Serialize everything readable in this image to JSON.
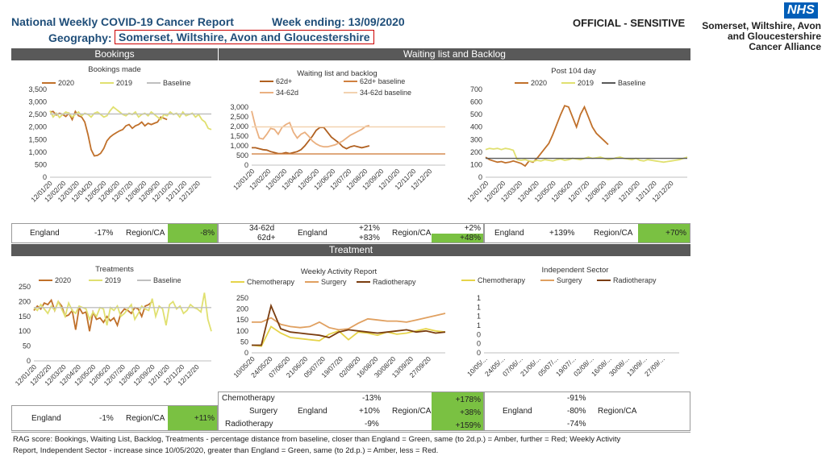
{
  "header": {
    "report_title": "National Weekly COVID-19 Cancer Report",
    "week_ending": "Week ending: 13/09/2020",
    "geography_label": "Geography:",
    "geography_value": "Somerset, Wiltshire, Avon and Gloucestershire",
    "classification": "OFFICIAL - SENSITIVE",
    "nhs_logo": "NHS",
    "org_line1": "Somerset, Wiltshire, Avon",
    "org_line2": "and Gloucestershire",
    "org_line3": "Cancer Alliance"
  },
  "sections": {
    "bookings": "Bookings",
    "waiting": "Waiting list and Backlog",
    "treatment": "Treatment"
  },
  "colors": {
    "y2020": "#c0702a",
    "y2019": "#e0e070",
    "baseline": "#bfbfbf",
    "surgery": "#e0a060",
    "radio": "#7a3d10",
    "chemo": "#e6d44a",
    "wl62": "#b06020",
    "wl62base": "#d08040",
    "wl3462": "#eab080",
    "wl3462base": "#f2d2b0",
    "green": "#7ac142"
  },
  "chart_data": [
    {
      "id": "bookings",
      "type": "line",
      "title": "Bookings made",
      "legend": [
        "2020",
        "2019",
        "Baseline"
      ],
      "ylim": [
        0,
        3500
      ],
      "yticks": [
        "3,500",
        "3,000",
        "2,500",
        "2,000",
        "1,500",
        "1,000",
        "500",
        "0"
      ],
      "xticks": [
        "12/01/20",
        "12/02/20",
        "12/03/20",
        "12/04/20",
        "12/05/20",
        "12/06/20",
        "12/07/20",
        "12/08/20",
        "12/09/20",
        "12/10/20",
        "12/11/20",
        "12/12/20"
      ],
      "weeks": 52,
      "series": [
        {
          "name": "2020",
          "color": "#c0702a",
          "values": [
            2600,
            2620,
            2480,
            2550,
            2500,
            2420,
            2550,
            2300,
            2620,
            2450,
            2400,
            2200,
            1700,
            1100,
            850,
            870,
            950,
            1150,
            1450,
            1600,
            1700,
            1780,
            1850,
            1900,
            2050,
            2100,
            1950,
            2050,
            2100,
            2200,
            2050,
            2150,
            2100,
            2150,
            2200,
            2400,
            2350,
            2300
          ]
        },
        {
          "name": "2019",
          "color": "#e0e070",
          "values": [
            2650,
            2400,
            2550,
            2380,
            2500,
            2600,
            2550,
            2400,
            2500,
            2600,
            2450,
            2550,
            2500,
            2400,
            2550,
            2600,
            2500,
            2400,
            2450,
            2650,
            2800,
            2700,
            2600,
            2500,
            2450,
            2550,
            2500,
            2600,
            2400,
            2500,
            2550,
            2450,
            2600,
            2500,
            2400,
            2300,
            2500,
            2450,
            2600,
            2500,
            2550,
            2400,
            2600,
            2450,
            2500,
            2550,
            2400,
            2500,
            2300,
            2200,
            1950,
            1900
          ]
        },
        {
          "name": "Baseline",
          "color": "#bfbfbf",
          "values": [
            2520,
            2520
          ]
        }
      ]
    },
    {
      "id": "waiting",
      "type": "line",
      "title": "Waiting list and backlog",
      "legend": [
        "62d+",
        "62d+ baseline",
        "34-62d",
        "34-62d baseline"
      ],
      "ylim": [
        0,
        3000
      ],
      "yticks": [
        "3,000",
        "2,500",
        "2,000",
        "1,500",
        "1,000",
        "500",
        "0"
      ],
      "xticks": [
        "12/01/20",
        "12/02/20",
        "12/03/20",
        "12/04/20",
        "12/05/20",
        "12/06/20",
        "12/07/20",
        "12/08/20",
        "12/09/20",
        "12/10/20",
        "12/11/20",
        "12/12/20"
      ],
      "weeks": 52,
      "series": [
        {
          "name": "62d+",
          "color": "#b06020",
          "values": [
            900,
            900,
            850,
            800,
            780,
            700,
            650,
            600,
            600,
            650,
            600,
            650,
            700,
            800,
            1000,
            1250,
            1500,
            1800,
            1950,
            1950,
            1700,
            1450,
            1300,
            1150,
            950,
            850,
            950,
            1000,
            950,
            900,
            950,
            1000
          ]
        },
        {
          "name": "62d+ baseline",
          "color": "#d08040",
          "values": [
            580,
            580
          ]
        },
        {
          "name": "34-62d",
          "color": "#eab080",
          "values": [
            2800,
            2000,
            1400,
            1350,
            1600,
            1900,
            1850,
            1600,
            1950,
            2100,
            2200,
            1700,
            1400,
            1600,
            1700,
            1500,
            1250,
            1100,
            1000,
            950,
            950,
            1000,
            1050,
            1150,
            1250,
            1400,
            1550,
            1650,
            1750,
            1850,
            2000,
            2050
          ]
        },
        {
          "name": "34-62d baseline",
          "color": "#f2d2b0",
          "values": [
            1980,
            1980
          ]
        }
      ]
    },
    {
      "id": "post104",
      "type": "line",
      "title": "Post 104 day",
      "legend": [
        "2020",
        "2019",
        "Baseline"
      ],
      "ylim": [
        0,
        700
      ],
      "yticks": [
        "700",
        "600",
        "500",
        "400",
        "300",
        "200",
        "100",
        "0"
      ],
      "xticks": [
        "12/01/20",
        "12/02/20",
        "12/03/20",
        "12/04/20",
        "12/05/20",
        "12/06/20",
        "12/07/20",
        "12/08/20",
        "12/09/20",
        "12/10/20",
        "12/11/20",
        "12/12/20"
      ],
      "weeks": 52,
      "series": [
        {
          "name": "2020",
          "color": "#c0702a",
          "values": [
            160,
            140,
            130,
            120,
            125,
            115,
            120,
            130,
            120,
            110,
            90,
            130,
            120,
            150,
            190,
            230,
            270,
            340,
            420,
            500,
            570,
            560,
            480,
            400,
            500,
            560,
            480,
            400,
            350,
            320,
            290,
            260
          ]
        },
        {
          "name": "2019",
          "color": "#e0e070",
          "values": [
            220,
            230,
            225,
            230,
            220,
            230,
            225,
            215,
            140,
            135,
            140,
            130,
            125,
            135,
            130,
            140,
            135,
            130,
            140,
            145,
            135,
            140,
            150,
            145,
            140,
            150,
            160,
            150,
            155,
            160,
            150,
            140,
            145,
            155,
            160,
            150,
            145,
            140,
            150,
            135,
            130,
            140,
            135,
            130,
            125,
            120,
            125,
            130,
            135,
            140,
            150,
            160
          ]
        },
        {
          "name": "Baseline",
          "color": "#595959",
          "values": [
            150,
            150
          ]
        }
      ]
    },
    {
      "id": "treatments",
      "type": "line",
      "title": "Treatments",
      "legend": [
        "2020",
        "2019",
        "Baseline"
      ],
      "ylim": [
        0,
        250
      ],
      "yticks": [
        "250",
        "200",
        "150",
        "100",
        "50",
        "0"
      ],
      "xticks": [
        "12/01/20",
        "12/02/20",
        "12/03/20",
        "12/04/20",
        "12/05/20",
        "12/06/20",
        "12/07/20",
        "12/08/20",
        "12/09/20",
        "12/10/20",
        "12/11/20",
        "12/12/20"
      ],
      "weeks": 52,
      "series": [
        {
          "name": "2020",
          "color": "#c0702a",
          "values": [
            170,
            185,
            175,
            195,
            190,
            205,
            170,
            200,
            185,
            150,
            155,
            170,
            105,
            180,
            160,
            165,
            100,
            165,
            140,
            145,
            130,
            150,
            135,
            145,
            120,
            160,
            175,
            170,
            160,
            180,
            175,
            150,
            185,
            190,
            200
          ]
        },
        {
          "name": "2019",
          "color": "#e0e070",
          "values": [
            180,
            170,
            190,
            175,
            160,
            185,
            170,
            200,
            175,
            150,
            195,
            170,
            160,
            185,
            180,
            175,
            140,
            165,
            150,
            180,
            175,
            120,
            180,
            170,
            185,
            150,
            160,
            175,
            190,
            140,
            160,
            185,
            175,
            170,
            210,
            150,
            185,
            175,
            120,
            190,
            200,
            175,
            185,
            160,
            170,
            190,
            180,
            175,
            165,
            230,
            140,
            100
          ]
        },
        {
          "name": "Baseline",
          "color": "#bfbfbf",
          "values": [
            180,
            180
          ]
        }
      ]
    },
    {
      "id": "weekly_activity",
      "type": "line",
      "title": "Weekly Activity Report",
      "legend": [
        "Chemotherapy",
        "Surgery",
        "Radiotherapy"
      ],
      "ylim": [
        0,
        250
      ],
      "yticks": [
        "250",
        "200",
        "150",
        "100",
        "50",
        "0"
      ],
      "xticks": [
        "10/05/20",
        "24/05/20",
        "07/06/20",
        "21/06/20",
        "05/07/20",
        "19/07/20",
        "02/08/20",
        "16/08/20",
        "30/08/20",
        "13/09/20",
        "27/09/20"
      ],
      "weeks": 21,
      "series": [
        {
          "name": "Chemotherapy",
          "color": "#e6d44a",
          "values": [
            35,
            30,
            120,
            90,
            70,
            65,
            60,
            55,
            85,
            100,
            60,
            95,
            90,
            80,
            95,
            85,
            90,
            100,
            110,
            100,
            95
          ]
        },
        {
          "name": "Surgery",
          "color": "#e0a060",
          "values": [
            140,
            140,
            160,
            130,
            120,
            115,
            120,
            140,
            115,
            105,
            110,
            135,
            155,
            150,
            145,
            145,
            140,
            150,
            160,
            170,
            180
          ]
        },
        {
          "name": "Radiotherapy",
          "color": "#7a3d10",
          "values": [
            35,
            35,
            215,
            110,
            95,
            90,
            85,
            80,
            70,
            95,
            105,
            100,
            95,
            90,
            95,
            100,
            105,
            95,
            100,
            90,
            95
          ]
        }
      ]
    },
    {
      "id": "independent",
      "type": "line",
      "title": "Independent Sector",
      "legend": [
        "Chemotherapy",
        "Surgery",
        "Radiotherapy"
      ],
      "ylim": [
        0,
        1
      ],
      "yticks": [
        "1",
        "1",
        "1",
        "1",
        "0",
        "0",
        "0"
      ],
      "xticks": [
        "10/05/...",
        "24/05/...",
        "07/06/...",
        "21/06/...",
        "05/07/...",
        "19/07/...",
        "02/08/...",
        "16/08/...",
        "30/08/...",
        "13/09/...",
        "27/09/..."
      ],
      "weeks": 21,
      "series": []
    }
  ],
  "tables": {
    "bookings": {
      "england_label": "England",
      "england_value": "-17%",
      "region_label": "Region/CA",
      "region_value": "-8%"
    },
    "waiting": {
      "row1": "34-62d",
      "row2": "62d+",
      "england_label": "England",
      "eng1": "+21%",
      "eng2": "+83%",
      "region_label": "Region/CA",
      "reg1": "+2%",
      "reg2": "+48%"
    },
    "post104": {
      "england_label": "England",
      "england_value": "+139%",
      "region_label": "Region/CA",
      "region_value": "+70%"
    },
    "treatments": {
      "england_label": "England",
      "england_value": "-1%",
      "region_label": "Region/CA",
      "region_value": "+11%"
    },
    "activity": {
      "chemo": "Chemotherapy",
      "surgery": "Surgery",
      "radio": "Radiotherapy",
      "england_label": "England",
      "eng_chemo": "-13%",
      "eng_surgery": "+10%",
      "eng_radio": "-9%",
      "region_label": "Region/CA",
      "reg_chemo": "+178%",
      "reg_surgery": "+38%",
      "reg_radio": "+159%"
    },
    "independent": {
      "england_label": "England",
      "eng_chemo": "-91%",
      "eng_surgery": "-80%",
      "eng_radio": "-74%",
      "region_label": "Region/CA"
    }
  },
  "footnote": {
    "line1": "RAG score: Bookings, Waiting List, Backlog, Treatments - percentage distance from baseline, closer than England = Green, same (to 2d.p.) = Amber, further = Red; Weekly Activity",
    "line2": "Report, Independent Sector - increase since 10/05/2020, greater than England = Green, same (to 2d.p.) = Amber, less = Red."
  }
}
